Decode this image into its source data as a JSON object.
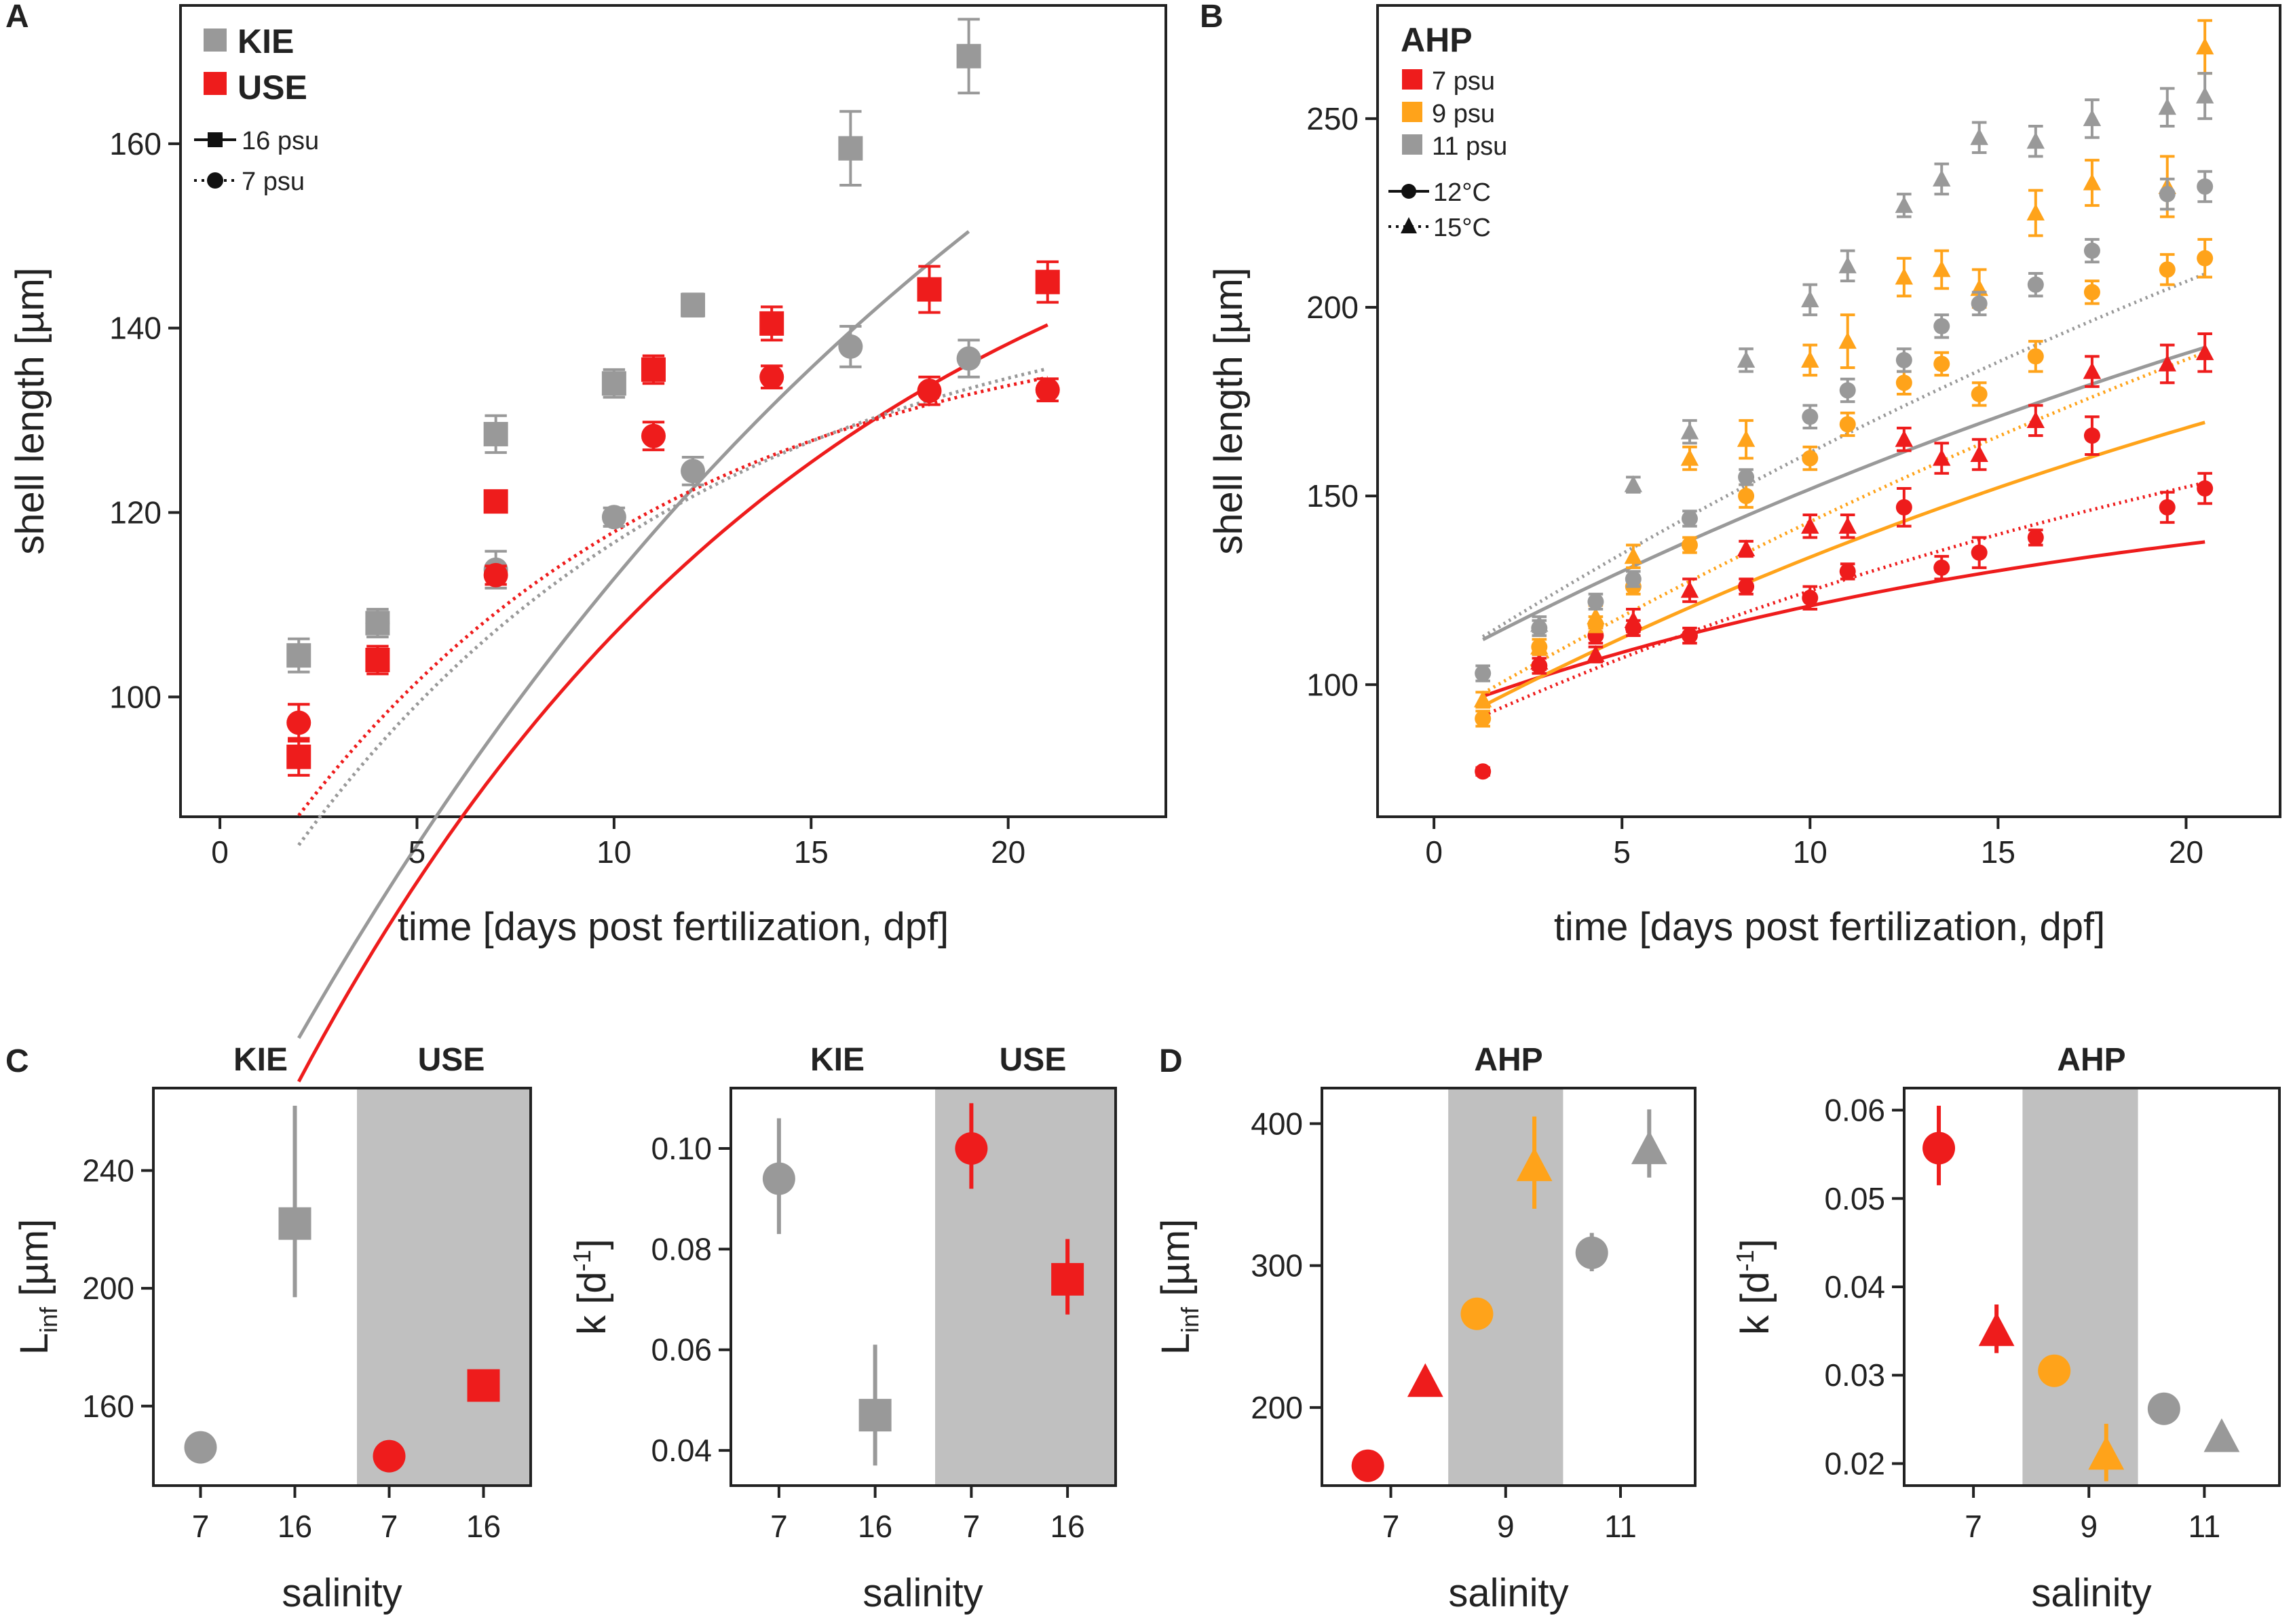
{
  "panel_labels": {
    "A": "A",
    "B": "B",
    "C": "C",
    "D": "D"
  },
  "colors": {
    "red": "#ee1c1c",
    "gray": "#999999",
    "orange": "#ffa31a",
    "shade": "#c0c0c0"
  },
  "chart_data": [
    {
      "id": "A",
      "type": "scatter",
      "xlabel": "time [days post fertilization, dpf]",
      "ylabel": "shell length [µm]",
      "xlim": [
        -1,
        24
      ],
      "ylim": [
        87,
        175
      ],
      "xticks": [
        0,
        5,
        10,
        15,
        20
      ],
      "yticks": [
        100,
        120,
        140,
        160
      ],
      "legend": {
        "sites": [
          "KIE",
          "USE"
        ],
        "salinities": [
          "16 psu",
          "7 psu"
        ]
      },
      "series": [
        {
          "name": "KIE 16 psu",
          "color": "gray",
          "marker": "square",
          "x": [
            2,
            4,
            7,
            10,
            12,
            16,
            19
          ],
          "y": [
            104.5,
            108,
            128.5,
            134,
            142.5,
            159.5,
            169.5
          ],
          "err": [
            1.8,
            1.5,
            2,
            1.5,
            1.2,
            4,
            4
          ]
        },
        {
          "name": "USE 16 psu",
          "color": "red",
          "marker": "square",
          "x": [
            2,
            4,
            7,
            11,
            14,
            18,
            21
          ],
          "y": [
            93.5,
            104,
            121.2,
            135.5,
            140.5,
            144.2,
            145
          ],
          "err": [
            2,
            1.5,
            1,
            1.5,
            1.8,
            2.5,
            2.2
          ]
        },
        {
          "name": "KIE 7 psu",
          "color": "gray",
          "marker": "circle",
          "x": [
            4,
            7,
            10,
            12,
            16,
            19
          ],
          "y": [
            108,
            113.8,
            119.5,
            124.5,
            138,
            136.7
          ],
          "err": [
            1.5,
            2,
            1,
            1.5,
            2.2,
            2
          ]
        },
        {
          "name": "USE 7 psu",
          "color": "red",
          "marker": "circle",
          "x": [
            2,
            7,
            11,
            14,
            18,
            21
          ],
          "y": [
            97.2,
            113.2,
            128.3,
            134.7,
            133.2,
            133.3
          ],
          "err": [
            2,
            1,
            1.5,
            1.2,
            1.5,
            1.2
          ]
        }
      ],
      "fits": [
        {
          "name": "KIE 16 psu fit",
          "color": "gray",
          "dash": false,
          "linf": 222,
          "k": 0.047,
          "t0": -5.1,
          "from": 2,
          "to": 19
        },
        {
          "name": "USE 16 psu fit",
          "color": "red",
          "dash": false,
          "linf": 167,
          "k": 0.074,
          "t0": -3.8,
          "from": 2,
          "to": 21
        },
        {
          "name": "KIE 7 psu fit",
          "color": "gray",
          "dash": true,
          "linf": 146,
          "k": 0.094,
          "t0": -7.1,
          "from": 2,
          "to": 21
        },
        {
          "name": "USE 7 psu fit",
          "color": "red",
          "dash": true,
          "linf": 143,
          "k": 0.1,
          "t0": -7.4,
          "from": 2,
          "to": 21
        }
      ]
    },
    {
      "id": "B",
      "type": "scatter",
      "xlabel": "time [days post fertilization, dpf]",
      "ylabel": "shell length [µm]",
      "xlim": [
        -1.5,
        22.5
      ],
      "ylim": [
        65,
        280
      ],
      "xticks": [
        0,
        5,
        10,
        15,
        20
      ],
      "yticks": [
        100,
        150,
        200,
        250
      ],
      "legend": {
        "site": "AHP",
        "salinities": [
          "7 psu",
          "9 psu",
          "11 psu"
        ],
        "temperatures": [
          "12°C",
          "15°C"
        ]
      },
      "series": [
        {
          "name": "AHP 7 psu 12°C",
          "color": "red",
          "marker": "circle",
          "x": [
            1.3,
            2.8,
            4.3,
            5.3,
            6.8,
            8.3,
            10,
            11,
            12.5,
            13.5,
            14.5,
            16,
            17.5,
            19.5,
            20.5
          ],
          "y": [
            77,
            105,
            113,
            115,
            113,
            126,
            123,
            130,
            147,
            131,
            135,
            139,
            166,
            147,
            152
          ],
          "err": [
            1,
            2,
            2,
            2,
            2,
            2,
            3,
            2,
            5,
            3,
            4,
            2,
            5,
            4,
            4
          ]
        },
        {
          "name": "AHP 7 psu 15°C",
          "color": "red",
          "marker": "triangle",
          "x": [
            2.8,
            4.3,
            5.3,
            6.8,
            8.3,
            10,
            11,
            12.5,
            13.5,
            14.5,
            16,
            17.5,
            19.5,
            20.5
          ],
          "y": [
            106,
            108,
            117,
            125,
            136,
            142,
            142,
            165,
            160,
            161,
            170,
            183,
            185,
            188
          ],
          "err": [
            2,
            2,
            3,
            3,
            2,
            3,
            3,
            3,
            4,
            4,
            4,
            4,
            5,
            5
          ]
        },
        {
          "name": "AHP 9 psu 12°C",
          "color": "orange",
          "marker": "circle",
          "x": [
            1.3,
            2.8,
            4.3,
            5.3,
            6.8,
            8.3,
            10,
            11,
            12.5,
            13.5,
            14.5,
            16,
            17.5,
            19.5,
            20.5
          ],
          "y": [
            91,
            110,
            116,
            126,
            137,
            150,
            160,
            169,
            180,
            185,
            177,
            187,
            204,
            210,
            213
          ],
          "err": [
            2,
            2,
            2,
            2,
            2,
            3,
            3,
            3,
            3,
            3,
            3,
            4,
            3,
            4,
            5
          ]
        },
        {
          "name": "AHP 9 psu 15°C",
          "color": "orange",
          "marker": "triangle",
          "x": [
            1.3,
            2.8,
            4.3,
            5.3,
            6.8,
            8.3,
            10,
            11,
            12.5,
            13.5,
            14.5,
            16,
            17.5,
            19.5,
            20.5
          ],
          "y": [
            96,
            110,
            118,
            134,
            160,
            165,
            186,
            191,
            208,
            210,
            205,
            225,
            233,
            232,
            269
          ],
          "err": [
            2,
            2,
            3,
            3,
            3,
            5,
            4,
            7,
            5,
            5,
            5,
            6,
            6,
            8,
            7
          ]
        },
        {
          "name": "AHP 11 psu 12°C",
          "color": "gray",
          "marker": "circle",
          "x": [
            1.3,
            2.8,
            4.3,
            5.3,
            6.8,
            8.3,
            10,
            11,
            12.5,
            13.5,
            14.5,
            16,
            17.5,
            19.5,
            20.5
          ],
          "y": [
            103,
            115,
            122,
            128,
            144,
            155,
            171,
            178,
            186,
            195,
            201,
            206,
            215,
            230,
            232
          ],
          "err": [
            2,
            2,
            2,
            2,
            2,
            2,
            3,
            3,
            3,
            3,
            3,
            3,
            3,
            4,
            4
          ]
        },
        {
          "name": "AHP 11 psu 15°C",
          "color": "gray",
          "marker": "triangle",
          "x": [
            2.8,
            5.3,
            6.8,
            8.3,
            10,
            11,
            12.5,
            13.5,
            14.5,
            16,
            17.5,
            19.5,
            20.5
          ],
          "y": [
            116,
            153,
            167,
            186,
            202,
            211,
            227,
            234,
            245,
            244,
            250,
            253,
            256
          ],
          "err": [
            2,
            2,
            3,
            3,
            4,
            4,
            3,
            4,
            4,
            4,
            5,
            5,
            6
          ]
        }
      ],
      "fits": [
        {
          "name": "7 psu 12°C fit",
          "color": "red",
          "dash": false,
          "linf": 159,
          "k": 0.056,
          "t0": -15.5,
          "from": 1.3,
          "to": 20.5
        },
        {
          "name": "7 psu 15°C fit",
          "color": "red",
          "dash": true,
          "linf": 218,
          "k": 0.035,
          "t0": -14.3,
          "from": 1.3,
          "to": 20.5
        },
        {
          "name": "9 psu 12°C fit",
          "color": "orange",
          "dash": false,
          "linf": 266,
          "k": 0.03,
          "t0": -13.3,
          "from": 1.3,
          "to": 20.5
        },
        {
          "name": "9 psu 15°C fit",
          "color": "orange",
          "dash": true,
          "linf": 370,
          "k": 0.021,
          "t0": -13.3,
          "from": 1.3,
          "to": 20.5
        },
        {
          "name": "11 psu 12°C fit",
          "color": "gray",
          "dash": false,
          "linf": 309,
          "k": 0.026,
          "t0": -16,
          "from": 1.3,
          "to": 20.5
        },
        {
          "name": "11 psu 15°C fit",
          "color": "gray",
          "dash": true,
          "linf": 382,
          "k": 0.023,
          "t0": -13.9,
          "from": 1.3,
          "to": 20.5
        }
      ]
    },
    {
      "id": "C1",
      "type": "scatter",
      "ylabel_main": "L",
      "ylabel_sub": "inf",
      "ylabel_rest": " [µm]",
      "xlabel": "salinity",
      "groups": [
        "KIE",
        "USE"
      ],
      "categories": [
        "7",
        "16",
        "7",
        "16"
      ],
      "ylim": [
        133,
        268
      ],
      "yticks": [
        160,
        200,
        240
      ],
      "shade_from_category": 2,
      "points": [
        {
          "cat": 0,
          "value": 146,
          "lo": 144,
          "hi": 150,
          "color": "gray",
          "marker": "circle"
        },
        {
          "cat": 1,
          "value": 222,
          "lo": 197,
          "hi": 262,
          "color": "gray",
          "marker": "square"
        },
        {
          "cat": 2,
          "value": 143,
          "lo": 141,
          "hi": 145,
          "color": "red",
          "marker": "circle"
        },
        {
          "cat": 3,
          "value": 167,
          "lo": 164,
          "hi": 171,
          "color": "red",
          "marker": "square"
        }
      ]
    },
    {
      "id": "C2",
      "type": "scatter",
      "ylabel_main": "k [d",
      "ylabel_sup": "-1",
      "ylabel_rest": "]",
      "xlabel": "salinity",
      "groups": [
        "KIE",
        "USE"
      ],
      "categories": [
        "7",
        "16",
        "7",
        "16"
      ],
      "ylim": [
        0.033,
        0.112
      ],
      "yticks": [
        0.04,
        0.06,
        0.08,
        0.1
      ],
      "ytick_labels": [
        "0.04",
        "0.06",
        "0.08",
        "0.10"
      ],
      "shade_from_category": 2,
      "points": [
        {
          "cat": 0,
          "value": 0.094,
          "lo": 0.083,
          "hi": 0.106,
          "color": "gray",
          "marker": "circle"
        },
        {
          "cat": 1,
          "value": 0.047,
          "lo": 0.037,
          "hi": 0.061,
          "color": "gray",
          "marker": "square"
        },
        {
          "cat": 2,
          "value": 0.1,
          "lo": 0.092,
          "hi": 0.109,
          "color": "red",
          "marker": "circle"
        },
        {
          "cat": 3,
          "value": 0.074,
          "lo": 0.067,
          "hi": 0.082,
          "color": "red",
          "marker": "square"
        }
      ]
    },
    {
      "id": "D1",
      "type": "scatter",
      "ylabel_main": "L",
      "ylabel_sub": "inf",
      "ylabel_rest": " [µm]",
      "xlabel": "salinity",
      "group": "AHP",
      "xlim": [
        5.8,
        12.3
      ],
      "xticks": [
        7,
        9,
        11
      ],
      "shade": [
        8,
        10
      ],
      "ylim": [
        145,
        425
      ],
      "yticks": [
        200,
        300,
        400
      ],
      "points": [
        {
          "x": 6.6,
          "value": 159,
          "lo": 155,
          "hi": 163,
          "color": "red",
          "marker": "circle"
        },
        {
          "x": 7.6,
          "value": 218,
          "lo": 214,
          "hi": 222,
          "color": "red",
          "marker": "triangle"
        },
        {
          "x": 8.5,
          "value": 266,
          "lo": 262,
          "hi": 270,
          "color": "orange",
          "marker": "circle"
        },
        {
          "x": 9.5,
          "value": 370,
          "lo": 340,
          "hi": 405,
          "color": "orange",
          "marker": "triangle"
        },
        {
          "x": 10.5,
          "value": 309,
          "lo": 296,
          "hi": 323,
          "color": "gray",
          "marker": "circle"
        },
        {
          "x": 11.5,
          "value": 382,
          "lo": 362,
          "hi": 410,
          "color": "gray",
          "marker": "triangle"
        }
      ]
    },
    {
      "id": "D2",
      "type": "scatter",
      "ylabel_main": "k [d",
      "ylabel_sup": "-1",
      "ylabel_rest": "]",
      "xlabel": "salinity",
      "group": "AHP",
      "xlim": [
        5.8,
        12.3
      ],
      "xticks": [
        7,
        9,
        11
      ],
      "shade": [
        7.85,
        9.85
      ],
      "ylim": [
        0.0175,
        0.0625
      ],
      "yticks": [
        0.02,
        0.03,
        0.04,
        0.05,
        0.06
      ],
      "ytick_labels": [
        "0.02",
        "0.03",
        "0.04",
        "0.05",
        "0.06"
      ],
      "points": [
        {
          "x": 6.4,
          "value": 0.0557,
          "lo": 0.0515,
          "hi": 0.0605,
          "color": "red",
          "marker": "circle"
        },
        {
          "x": 7.4,
          "value": 0.035,
          "lo": 0.0325,
          "hi": 0.038,
          "color": "red",
          "marker": "triangle"
        },
        {
          "x": 8.4,
          "value": 0.0305,
          "lo": 0.029,
          "hi": 0.032,
          "color": "orange",
          "marker": "circle"
        },
        {
          "x": 9.3,
          "value": 0.021,
          "lo": 0.018,
          "hi": 0.0245,
          "color": "orange",
          "marker": "triangle"
        },
        {
          "x": 10.3,
          "value": 0.0262,
          "lo": 0.025,
          "hi": 0.0275,
          "color": "gray",
          "marker": "circle"
        },
        {
          "x": 11.3,
          "value": 0.023,
          "lo": 0.022,
          "hi": 0.0245,
          "color": "gray",
          "marker": "triangle"
        }
      ]
    }
  ]
}
